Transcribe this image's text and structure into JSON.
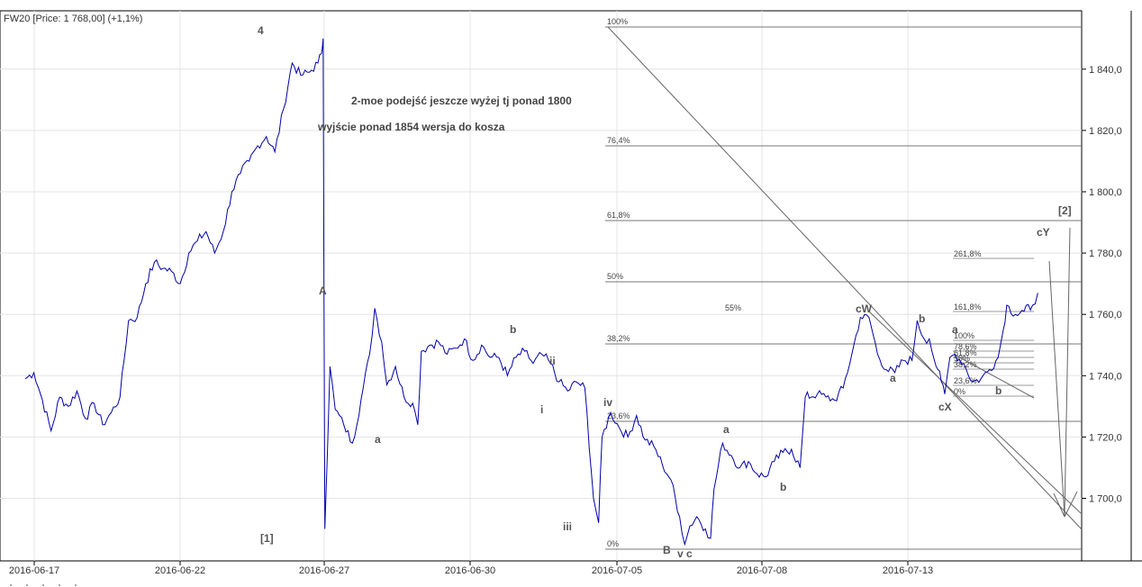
{
  "chart_data": {
    "type": "line",
    "title": "FW20 [Price: 1 768,00] (+1,1%)",
    "x_ticks": [
      "2016-06-17",
      "2016-06-22",
      "2016-06-27",
      "2016-06-30",
      "2016-07-05",
      "2016-07-08",
      "2016-07-13"
    ],
    "y_ticks": [
      "1 700,0",
      "1 720,0",
      "1 740,0",
      "1 760,0",
      "1 780,0",
      "1 800,0",
      "1 820,0",
      "1 840,0"
    ],
    "ylim": [
      1684,
      1857
    ],
    "grid": true,
    "line_color": "#0000aa",
    "series_anchors": [
      [
        0,
        1739
      ],
      [
        0.5,
        1741
      ],
      [
        1,
        1732
      ],
      [
        1.5,
        1722
      ],
      [
        2,
        1733
      ],
      [
        2.5,
        1730
      ],
      [
        3,
        1735
      ],
      [
        3.5,
        1726
      ],
      [
        4,
        1731
      ],
      [
        4.5,
        1724
      ],
      [
        5,
        1728
      ],
      [
        5.5,
        1733
      ],
      [
        6,
        1758
      ],
      [
        6.5,
        1759
      ],
      [
        7,
        1770
      ],
      [
        7.5,
        1777
      ],
      [
        8,
        1775
      ],
      [
        8.5,
        1774
      ],
      [
        9,
        1770
      ],
      [
        9.5,
        1780
      ],
      [
        10,
        1784
      ],
      [
        10.5,
        1787
      ],
      [
        11,
        1780
      ],
      [
        11.5,
        1787
      ],
      [
        12,
        1800
      ],
      [
        12.5,
        1806
      ],
      [
        13,
        1810
      ],
      [
        13.5,
        1815
      ],
      [
        14,
        1818
      ],
      [
        14.5,
        1813
      ],
      [
        15,
        1827
      ],
      [
        15.5,
        1842
      ],
      [
        16,
        1838
      ],
      [
        16.5,
        1839
      ],
      [
        17,
        1842
      ],
      [
        17.2,
        1845
      ],
      [
        17.3,
        1850
      ],
      [
        17.4,
        1690
      ],
      [
        17.7,
        1743
      ],
      [
        18,
        1729
      ],
      [
        18.5,
        1724
      ],
      [
        19,
        1718
      ],
      [
        19.5,
        1732
      ],
      [
        20,
        1747
      ],
      [
        20.3,
        1762
      ],
      [
        20.7,
        1751
      ],
      [
        21,
        1737
      ],
      [
        21.5,
        1743
      ],
      [
        22,
        1733
      ],
      [
        22.5,
        1731
      ],
      [
        22.8,
        1724
      ],
      [
        23,
        1748
      ],
      [
        23.5,
        1750
      ],
      [
        24,
        1751
      ],
      [
        24.5,
        1747
      ],
      [
        25,
        1749
      ],
      [
        25.5,
        1752
      ],
      [
        26,
        1745
      ],
      [
        26.5,
        1750
      ],
      [
        27,
        1746
      ],
      [
        27.5,
        1746
      ],
      [
        28,
        1740
      ],
      [
        28.5,
        1746
      ],
      [
        29,
        1748
      ],
      [
        29.5,
        1744
      ],
      [
        30,
        1747
      ],
      [
        30.5,
        1744
      ],
      [
        31,
        1738
      ],
      [
        31.5,
        1735
      ],
      [
        32,
        1738
      ],
      [
        32.5,
        1736
      ],
      [
        33,
        1700
      ],
      [
        33.3,
        1692
      ],
      [
        33.5,
        1720
      ],
      [
        34,
        1728
      ],
      [
        34.5,
        1723
      ],
      [
        35,
        1720
      ],
      [
        35.5,
        1727
      ],
      [
        36,
        1719
      ],
      [
        36.5,
        1717
      ],
      [
        37,
        1711
      ],
      [
        37.5,
        1706
      ],
      [
        38,
        1694
      ],
      [
        38.3,
        1685
      ],
      [
        38.6,
        1691
      ],
      [
        39,
        1694
      ],
      [
        39.5,
        1690
      ],
      [
        39.8,
        1687
      ],
      [
        40,
        1703
      ],
      [
        40.5,
        1718
      ],
      [
        41,
        1714
      ],
      [
        41.5,
        1710
      ],
      [
        42,
        1712
      ],
      [
        42.5,
        1708
      ],
      [
        43,
        1707
      ],
      [
        43.5,
        1712
      ],
      [
        44,
        1715
      ],
      [
        44.5,
        1716
      ],
      [
        45,
        1710
      ],
      [
        45.3,
        1733
      ],
      [
        46,
        1734
      ],
      [
        46.5,
        1733
      ],
      [
        47,
        1732
      ],
      [
        47.5,
        1736
      ],
      [
        48,
        1747
      ],
      [
        48.5,
        1759
      ],
      [
        49,
        1759
      ],
      [
        49.5,
        1747
      ],
      [
        50,
        1742
      ],
      [
        50.5,
        1741
      ],
      [
        51,
        1745
      ],
      [
        51.5,
        1745
      ],
      [
        51.8,
        1758
      ],
      [
        52.2,
        1752
      ],
      [
        52.5,
        1752
      ],
      [
        52.8,
        1745
      ],
      [
        53,
        1742
      ],
      [
        53.2,
        1738
      ],
      [
        53.4,
        1734
      ],
      [
        53.7,
        1746
      ],
      [
        54,
        1747
      ],
      [
        54.5,
        1744
      ],
      [
        55,
        1738
      ],
      [
        55.5,
        1739
      ],
      [
        56,
        1742
      ],
      [
        56.5,
        1746
      ],
      [
        56.8,
        1755
      ],
      [
        57,
        1763
      ],
      [
        57.5,
        1760
      ],
      [
        58,
        1761
      ],
      [
        58.5,
        1763
      ],
      [
        58.8,
        1767
      ]
    ]
  },
  "fib_main": [
    "100%",
    "76,4%",
    "61,8%",
    "50%",
    "38,2%",
    "23,6%",
    "0%"
  ],
  "fib_small": [
    "261,8%",
    "161,8%",
    "100%",
    "78,6%",
    "61,8%",
    "50%",
    "38,2%",
    "23,6%",
    "0%"
  ],
  "waves": {
    "w4": "4",
    "w1": "[1]",
    "A": "A",
    "a1": "a",
    "b1": "b",
    "ii": "ii",
    "i": "i",
    "iii": "iii",
    "iv": "iv",
    "B": "B",
    "vc": "v c",
    "a2": "a",
    "b2": "b",
    "cW": "cW",
    "a3": "a",
    "b3": "b",
    "a4": "a",
    "cX": "cX",
    "b4": "b",
    "cY": "cY",
    "w2": "[2]",
    "mini": "55%"
  },
  "annotations": {
    "note1": "2-moe podejść jeszcze wyżej  tj ponad 1800",
    "note2": "wyjście ponad 1854  wersja do kosza"
  }
}
